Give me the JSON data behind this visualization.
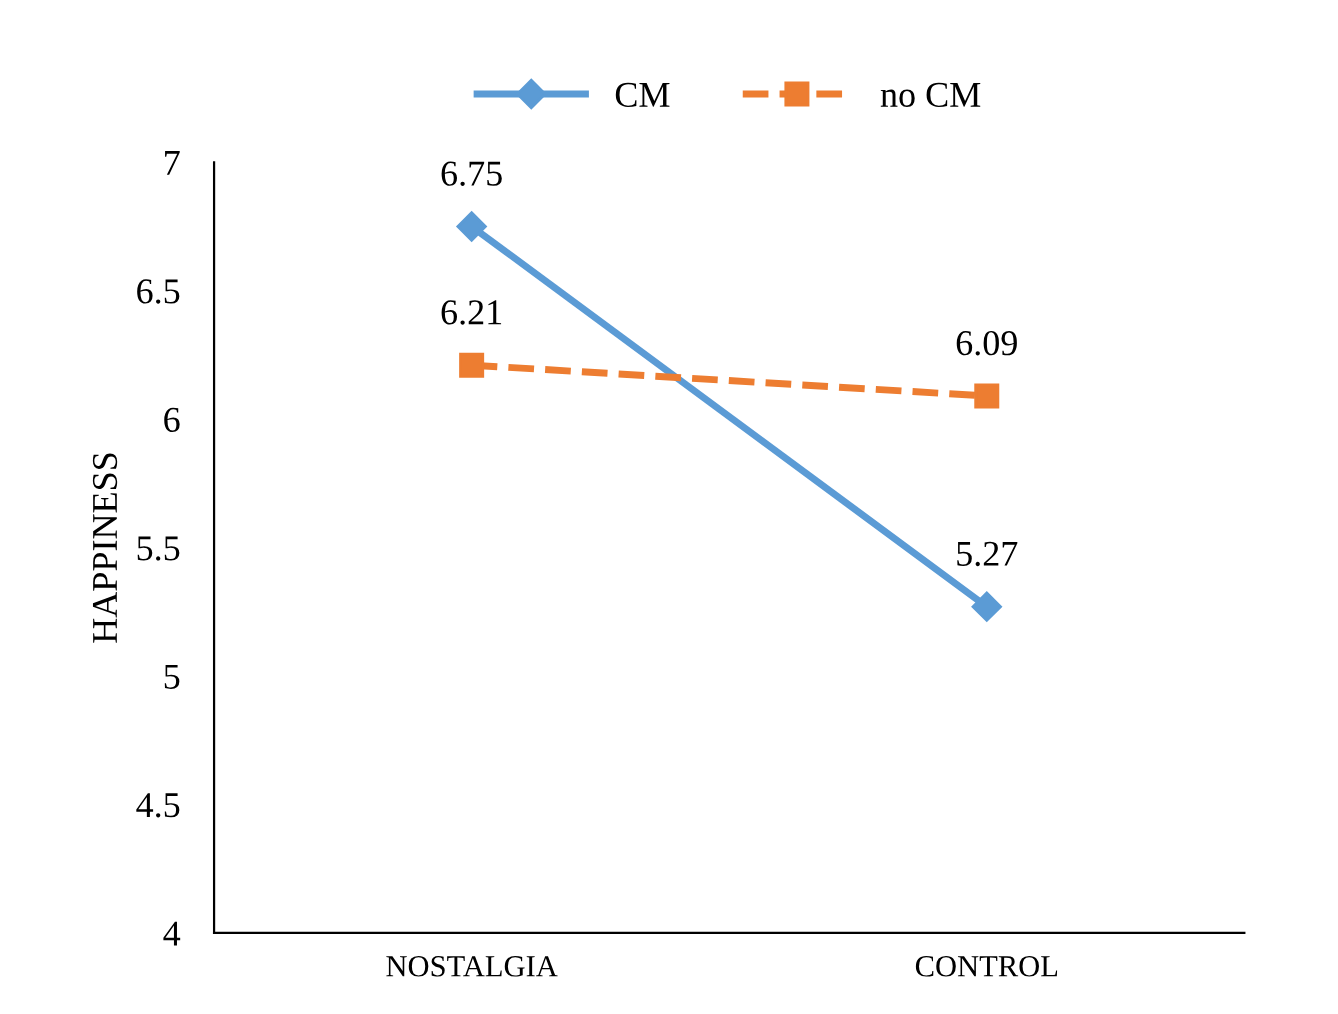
{
  "chart_data": {
    "type": "line",
    "ylabel": "HAPPINESS",
    "categories": [
      "NOSTALGIA",
      "CONTROL"
    ],
    "series": [
      {
        "name": "CM",
        "color": "#5b9bd5",
        "values": [
          6.75,
          5.27
        ],
        "marker": "diamond",
        "line_style": "solid"
      },
      {
        "name": "no CM",
        "color": "#ed7d31",
        "values": [
          6.21,
          6.09
        ],
        "marker": "square",
        "line_style": "dashed"
      }
    ],
    "ylim": [
      4,
      7
    ],
    "yticks": [
      4,
      4.5,
      5,
      5.5,
      6,
      6.5,
      7
    ],
    "data_labels": true,
    "legend": "top",
    "grid": false
  }
}
